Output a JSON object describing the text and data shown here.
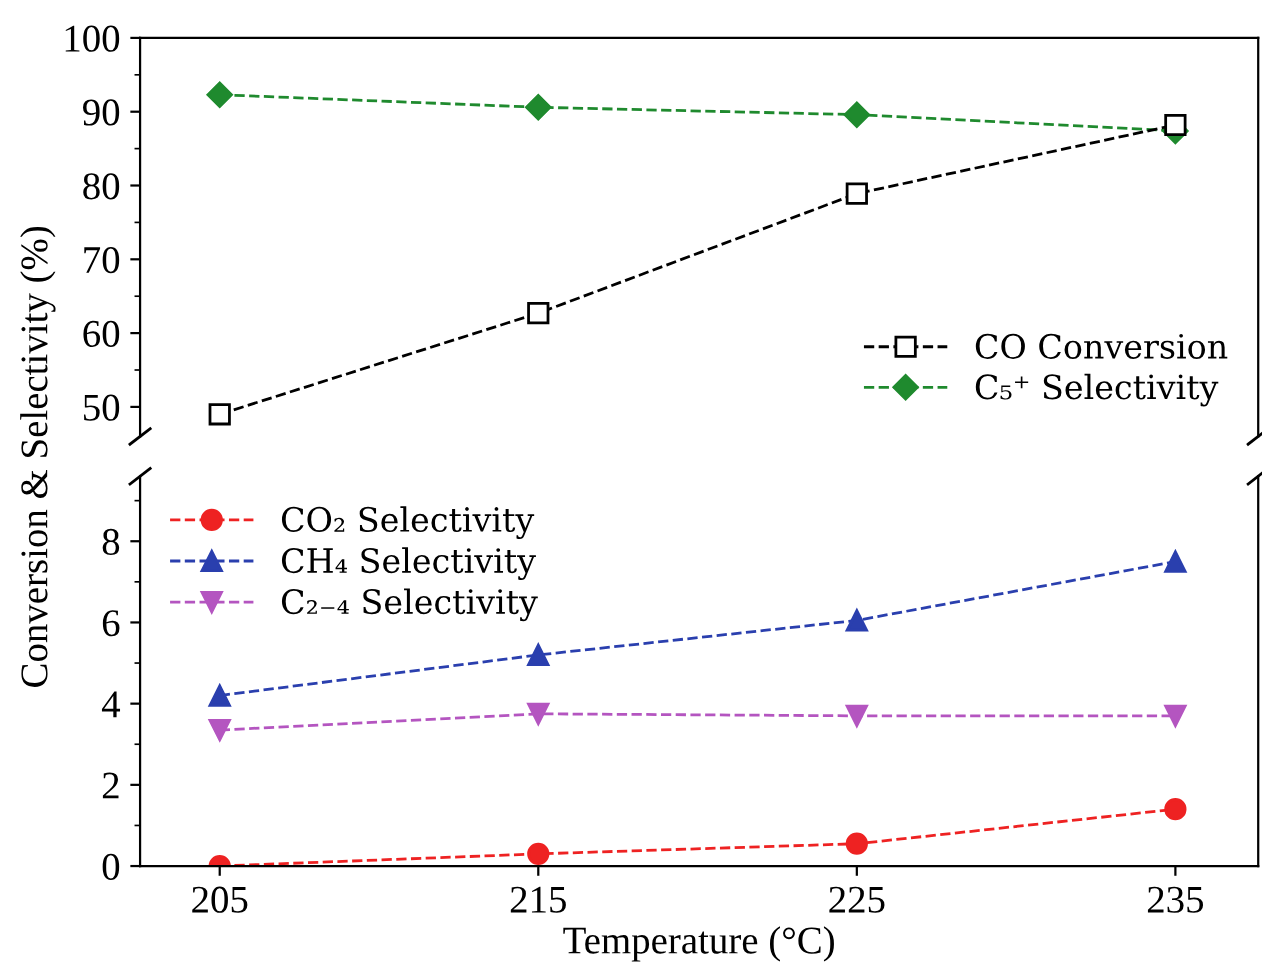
{
  "chart_data": [
    {
      "type": "line",
      "x": [
        205,
        215,
        225,
        235
      ],
      "ylabel": "Conversion & Selectivity (%)",
      "xlim": [
        202.5,
        237.6
      ],
      "ylim": [
        46,
        100
      ],
      "yticks": [
        50,
        60,
        70,
        80,
        90,
        100
      ],
      "tick_labels": "y",
      "line_style": "dashed",
      "legend": "bottom right",
      "grid": false,
      "series": [
        {
          "name": "CO Conversion",
          "color": "#000000",
          "marker": "square",
          "values": [
            49,
            62.7,
            78.9,
            88.2
          ]
        },
        {
          "name": "C₅⁺ Selectivity",
          "color": "#1f8a2e",
          "marker": "diamond",
          "values": [
            92.3,
            90.6,
            89.6,
            87.4
          ]
        }
      ]
    },
    {
      "type": "line",
      "x": [
        205,
        215,
        225,
        235
      ],
      "xlabel": "Temperature (°C)",
      "xlim": [
        202.5,
        237.6
      ],
      "xticks": [
        205,
        215,
        225,
        235
      ],
      "ylim": [
        0,
        9.6
      ],
      "yticks": [
        0,
        2,
        4,
        6,
        8
      ],
      "line_style": "dashed",
      "legend": "top left",
      "grid": false,
      "series": [
        {
          "name": "CO₂ Selectivity",
          "color": "#ee2222",
          "marker": "circle",
          "values": [
            0,
            0.3,
            0.55,
            1.4
          ]
        },
        {
          "name": "CH₄ Selectivity",
          "color": "#2a3fae",
          "marker": "triangle",
          "values": [
            4.2,
            5.2,
            6.05,
            7.5
          ]
        },
        {
          "name": "C₂₋₄ Selectivity",
          "color": "#b455c0",
          "marker": "triangle_down",
          "values": [
            3.35,
            3.75,
            3.7,
            3.7
          ]
        }
      ]
    }
  ]
}
